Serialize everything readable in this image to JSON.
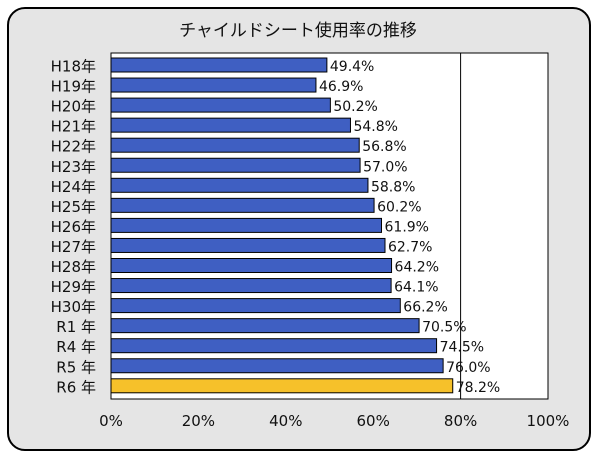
{
  "chart_data": {
    "type": "bar",
    "orientation": "horizontal",
    "title": "チャイルドシート使用率の推移",
    "categories": [
      "H18年",
      "H19年",
      "H20年",
      "H21年",
      "H22年",
      "H23年",
      "H24年",
      "H25年",
      "H26年",
      "H27年",
      "H28年",
      "H29年",
      "H30年",
      "R1 年",
      "R4 年",
      "R5 年",
      "R6 年"
    ],
    "values": [
      49.4,
      46.9,
      50.2,
      54.8,
      56.8,
      57.0,
      58.8,
      60.2,
      61.9,
      62.7,
      64.2,
      64.1,
      66.2,
      70.5,
      74.5,
      76.0,
      78.2
    ],
    "value_labels": [
      "49.4%",
      "46.9%",
      "50.2%",
      "54.8%",
      "56.8%",
      "57.0%",
      "58.8%",
      "60.2%",
      "61.9%",
      "62.7%",
      "64.2%",
      "64.1%",
      "66.2%",
      "70.5%",
      "74.5%",
      "76.0%",
      "78.2%"
    ],
    "xlim": [
      0,
      100
    ],
    "xticks": [
      0,
      20,
      40,
      60,
      80,
      100
    ],
    "xtick_labels": [
      "0%",
      "20%",
      "40%",
      "60%",
      "80%",
      "100%"
    ],
    "gridlines": [
      80
    ],
    "colors": {
      "bar": "#3f5fc2",
      "highlight": "#f6c12a",
      "highlight_index": 16,
      "frame_bg": "#e5e5e5"
    }
  }
}
